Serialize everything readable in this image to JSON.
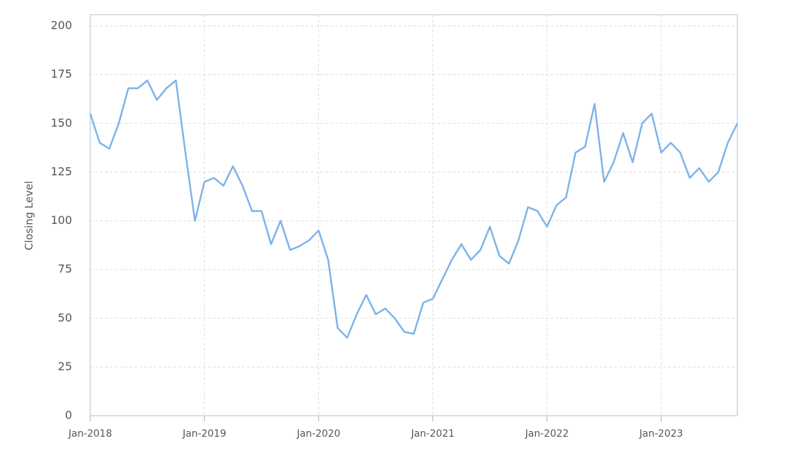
{
  "chart_data": {
    "type": "line",
    "y_label": "Closing Level",
    "x": [
      "2018-01",
      "2018-02",
      "2018-03",
      "2018-04",
      "2018-05",
      "2018-06",
      "2018-07",
      "2018-08",
      "2018-09",
      "2018-10",
      "2018-11",
      "2018-12",
      "2019-01",
      "2019-02",
      "2019-03",
      "2019-04",
      "2019-05",
      "2019-06",
      "2019-07",
      "2019-08",
      "2019-09",
      "2019-10",
      "2019-11",
      "2019-12",
      "2020-01",
      "2020-02",
      "2020-03",
      "2020-04",
      "2020-05",
      "2020-06",
      "2020-07",
      "2020-08",
      "2020-09",
      "2020-10",
      "2020-11",
      "2020-12",
      "2021-01",
      "2021-02",
      "2021-03",
      "2021-04",
      "2021-05",
      "2021-06",
      "2021-07",
      "2021-08",
      "2021-09",
      "2021-10",
      "2021-11",
      "2021-12",
      "2022-01",
      "2022-02",
      "2022-03",
      "2022-04",
      "2022-05",
      "2022-06",
      "2022-07",
      "2022-08",
      "2022-09",
      "2022-10",
      "2022-11",
      "2022-12",
      "2023-01",
      "2023-02",
      "2023-03",
      "2023-04",
      "2023-05",
      "2023-06",
      "2023-07",
      "2023-08",
      "2023-09"
    ],
    "series": [
      {
        "name": "Closing Level",
        "color": "#7eb3e8",
        "values": [
          155,
          140,
          137,
          150,
          168,
          168,
          172,
          162,
          168,
          172,
          135,
          100,
          120,
          122,
          118,
          128,
          118,
          105,
          105,
          88,
          100,
          85,
          87,
          90,
          95,
          80,
          45,
          40,
          52,
          62,
          52,
          55,
          50,
          43,
          42,
          58,
          60,
          70,
          80,
          88,
          80,
          85,
          97,
          82,
          78,
          90,
          107,
          105,
          97,
          108,
          112,
          135,
          138,
          160,
          120,
          130,
          145,
          130,
          150,
          155,
          135,
          140,
          135,
          122,
          127,
          120,
          125,
          140,
          150
        ]
      }
    ],
    "xlim": [
      "2018-01",
      "2023-09"
    ],
    "xticks": [
      {
        "value": "2018-01",
        "label": "Jan-2018"
      },
      {
        "value": "2019-01",
        "label": "Jan-2019"
      },
      {
        "value": "2020-01",
        "label": "Jan-2020"
      },
      {
        "value": "2021-01",
        "label": "Jan-2021"
      },
      {
        "value": "2022-01",
        "label": "Jan-2022"
      },
      {
        "value": "2023-01",
        "label": "Jan-2023"
      }
    ],
    "ylim": [
      0,
      200
    ],
    "yticks": [
      0,
      25,
      50,
      75,
      100,
      125,
      150,
      175,
      200
    ],
    "grid": true
  }
}
